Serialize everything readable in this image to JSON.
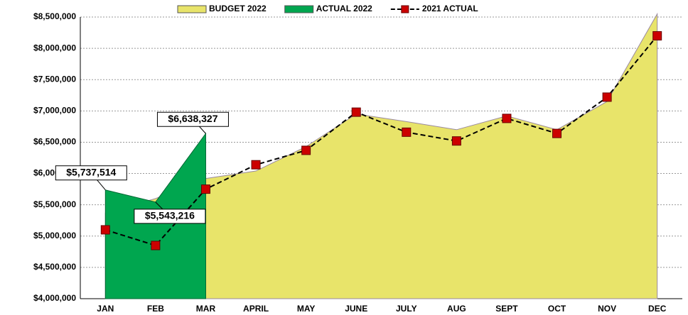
{
  "chart_data": {
    "type": "area",
    "categories": [
      "JAN",
      "FEB",
      "MAR",
      "APRIL",
      "MAY",
      "JUNE",
      "JULY",
      "AUG",
      "SEPT",
      "OCT",
      "NOV",
      "DEC"
    ],
    "series": [
      {
        "name": "BUDGET 2022",
        "color": "#e8e46a",
        "kind": "area",
        "values": [
          5370000,
          5600000,
          5920000,
          6040000,
          6430000,
          6950000,
          6830000,
          6700000,
          6920000,
          6700000,
          7150000,
          8550000
        ]
      },
      {
        "name": "ACTUAL 2022",
        "color": "#00a64f",
        "kind": "area",
        "values": [
          5737514,
          5543216,
          6638327,
          null,
          null,
          null,
          null,
          null,
          null,
          null,
          null,
          null
        ],
        "value_labels": [
          "$5,737,514",
          "$5,543,216",
          "$6,638,327",
          null,
          null,
          null,
          null,
          null,
          null,
          null,
          null,
          null
        ]
      },
      {
        "name": "2021 ACTUAL",
        "color": "#cc0000",
        "kind": "line",
        "values": [
          5100000,
          4850000,
          5750000,
          6140000,
          6370000,
          6980000,
          6660000,
          6520000,
          6880000,
          6640000,
          7220000,
          8200000
        ]
      }
    ],
    "ylim": [
      4000000,
      8500000
    ],
    "yticks": [
      {
        "value": 4000000,
        "label": "$4,000,000"
      },
      {
        "value": 4500000,
        "label": "$4,500,000"
      },
      {
        "value": 5000000,
        "label": "$5,000,000"
      },
      {
        "value": 5500000,
        "label": "$5,500,000"
      },
      {
        "value": 6000000,
        "label": "$6,000,000"
      },
      {
        "value": 6500000,
        "label": "$6,500,000"
      },
      {
        "value": 7000000,
        "label": "$7,000,000"
      },
      {
        "value": 7500000,
        "label": "$7,500,000"
      },
      {
        "value": 8000000,
        "label": "$8,000,000"
      },
      {
        "value": 8500000,
        "label": "$8,500,000"
      }
    ],
    "grid": true,
    "legend": "top"
  }
}
